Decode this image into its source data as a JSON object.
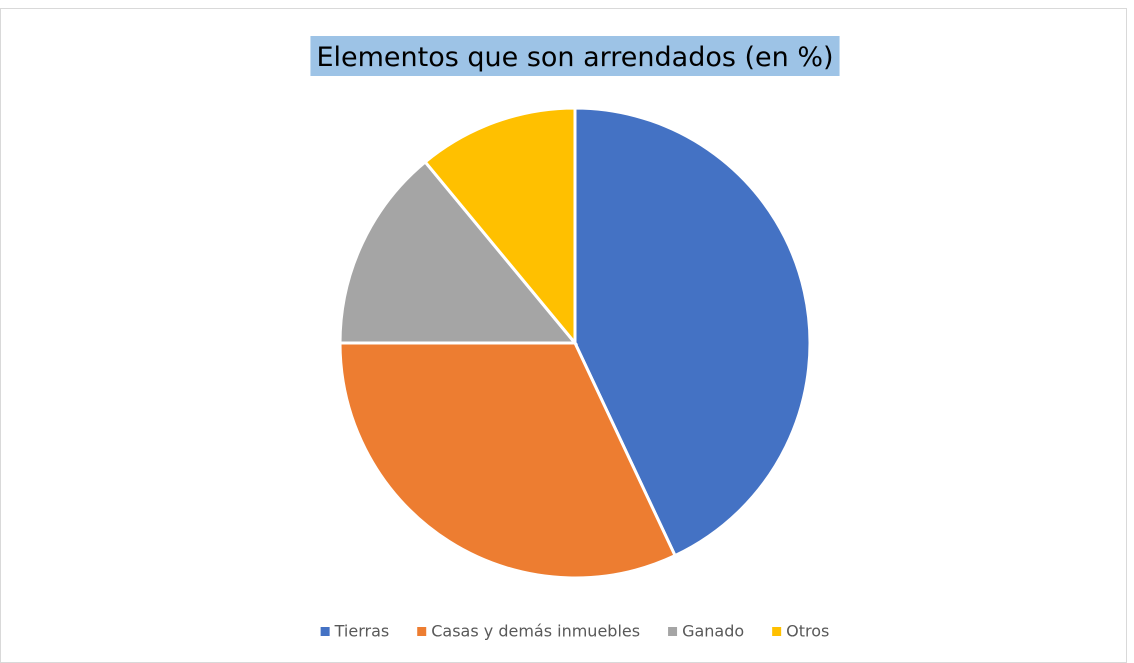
{
  "chart_data": {
    "type": "pie",
    "title": "Elementos que son arrendados (en %)",
    "categories": [
      "Tierras",
      "Casas y demás inmuebles",
      "Ganado",
      "Otros"
    ],
    "values": [
      43,
      32,
      14,
      11
    ],
    "colors": [
      "#4472c4",
      "#ed7d31",
      "#a5a5a5",
      "#ffc000"
    ],
    "legend": "bottom"
  }
}
